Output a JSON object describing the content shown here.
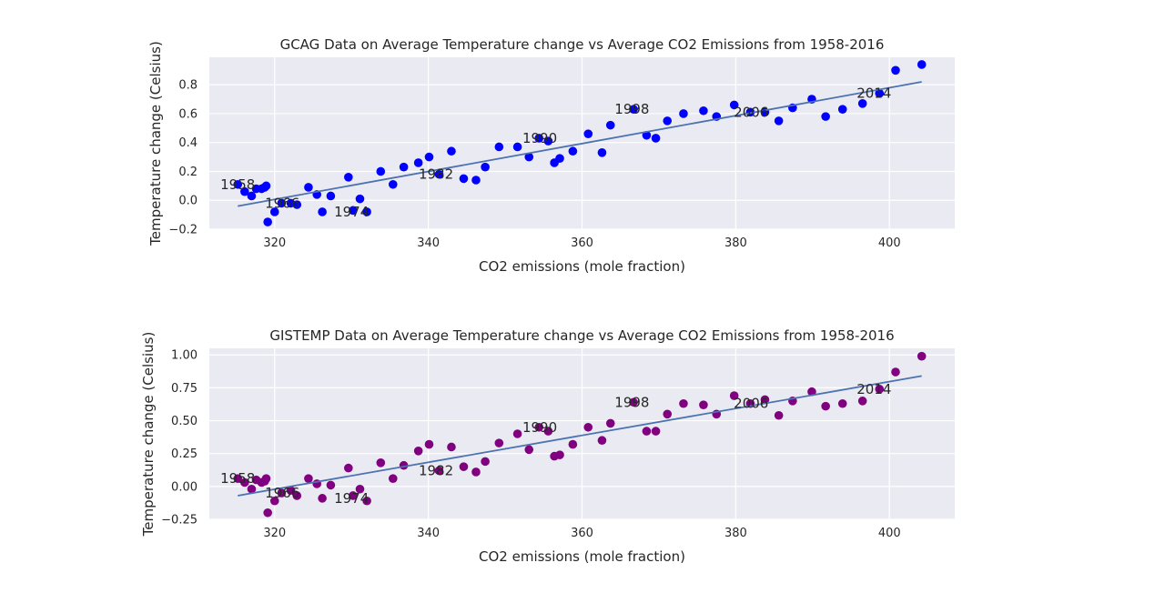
{
  "chart_data": [
    {
      "type": "scatter",
      "title": "GCAG Data on Average Temperature change vs Average CO2 Emissions from 1958-2016",
      "xlabel": "CO2 emissions (mole fraction)",
      "ylabel": "Temperature change (Celsius)",
      "xlim": [
        311.5,
        408.5
      ],
      "ylim": [
        -0.2,
        0.99
      ],
      "xticks": [
        320,
        340,
        360,
        380,
        400
      ],
      "yticks": [
        -0.2,
        0.0,
        0.2,
        0.4,
        0.6,
        0.8
      ],
      "ytick_labels": [
        "−0.2",
        "0.0",
        "0.2",
        "0.4",
        "0.6",
        "0.8"
      ],
      "grid": true,
      "marker_color": "#0000ff",
      "fit_color": "#4c72b0",
      "background": "#eaeaf2",
      "x": [
        315.2,
        316.1,
        317.0,
        317.6,
        318.3,
        318.7,
        318.9,
        319.1,
        320.0,
        320.9,
        322.1,
        322.9,
        324.4,
        325.5,
        326.2,
        327.3,
        329.6,
        330.2,
        331.1,
        332.0,
        333.8,
        335.4,
        336.8,
        338.7,
        340.1,
        341.4,
        343.0,
        344.6,
        346.2,
        347.4,
        349.2,
        351.6,
        353.1,
        354.4,
        355.6,
        356.4,
        357.1,
        358.8,
        360.8,
        362.6,
        363.7,
        366.7,
        368.4,
        369.6,
        371.1,
        373.2,
        375.8,
        377.5,
        379.8,
        381.9,
        383.8,
        385.6,
        387.4,
        389.9,
        391.7,
        393.9,
        396.5,
        398.7,
        400.8,
        404.2
      ],
      "y": [
        0.11,
        0.06,
        0.03,
        0.08,
        0.08,
        0.09,
        0.1,
        -0.15,
        -0.08,
        -0.02,
        -0.02,
        -0.03,
        0.09,
        0.04,
        -0.08,
        0.03,
        0.16,
        -0.07,
        0.01,
        -0.08,
        0.2,
        0.11,
        0.23,
        0.26,
        0.3,
        0.18,
        0.34,
        0.15,
        0.14,
        0.23,
        0.37,
        0.37,
        0.3,
        0.43,
        0.41,
        0.26,
        0.29,
        0.34,
        0.46,
        0.33,
        0.52,
        0.63,
        0.45,
        0.43,
        0.55,
        0.6,
        0.62,
        0.58,
        0.66,
        0.61,
        0.61,
        0.55,
        0.64,
        0.7,
        0.58,
        0.63,
        0.67,
        0.74,
        0.9,
        0.94
      ],
      "fit": {
        "x": [
          315.2,
          404.2
        ],
        "y": [
          -0.04,
          0.82
        ]
      },
      "annotations": [
        {
          "text": "1958",
          "x": 315.2,
          "y": 0.11
        },
        {
          "text": "1966",
          "x": 321.0,
          "y": -0.02
        },
        {
          "text": "1974",
          "x": 330.0,
          "y": -0.08
        },
        {
          "text": "1982",
          "x": 341.0,
          "y": 0.18
        },
        {
          "text": "1990",
          "x": 354.5,
          "y": 0.43
        },
        {
          "text": "1998",
          "x": 366.5,
          "y": 0.63
        },
        {
          "text": "2006",
          "x": 382.0,
          "y": 0.61
        },
        {
          "text": "2014",
          "x": 398.0,
          "y": 0.74
        }
      ]
    },
    {
      "type": "scatter",
      "title": "GISTEMP Data on Average Temperature change vs Average CO2 Emissions from 1958-2016",
      "xlabel": "CO2 emissions (mole fraction)",
      "ylabel": "Temperature change (Celsius)",
      "xlim": [
        311.5,
        408.5
      ],
      "ylim": [
        -0.25,
        1.05
      ],
      "xticks": [
        320,
        340,
        360,
        380,
        400
      ],
      "yticks": [
        -0.25,
        0.0,
        0.25,
        0.5,
        0.75,
        1.0
      ],
      "ytick_labels": [
        "−0.25",
        "0.00",
        "0.25",
        "0.50",
        "0.75",
        "1.00"
      ],
      "grid": true,
      "marker_color": "#800080",
      "fit_color": "#4c72b0",
      "background": "#eaeaf2",
      "x": [
        315.2,
        316.1,
        317.0,
        317.6,
        318.3,
        318.7,
        318.9,
        319.1,
        320.0,
        320.9,
        322.1,
        322.9,
        324.4,
        325.5,
        326.2,
        327.3,
        329.6,
        330.2,
        331.1,
        332.0,
        333.8,
        335.4,
        336.8,
        338.7,
        340.1,
        341.4,
        343.0,
        344.6,
        346.2,
        347.4,
        349.2,
        351.6,
        353.1,
        354.4,
        355.6,
        356.4,
        357.1,
        358.8,
        360.8,
        362.6,
        363.7,
        366.7,
        368.4,
        369.6,
        371.1,
        373.2,
        375.8,
        377.5,
        379.8,
        381.9,
        383.8,
        385.6,
        387.4,
        389.9,
        391.7,
        393.9,
        396.5,
        398.7,
        400.8,
        404.2
      ],
      "y": [
        0.06,
        0.03,
        -0.02,
        0.05,
        0.03,
        0.04,
        0.06,
        -0.2,
        -0.11,
        -0.05,
        -0.03,
        -0.07,
        0.06,
        0.02,
        -0.09,
        0.01,
        0.14,
        -0.07,
        -0.02,
        -0.11,
        0.18,
        0.06,
        0.16,
        0.27,
        0.32,
        0.12,
        0.3,
        0.15,
        0.11,
        0.19,
        0.33,
        0.4,
        0.28,
        0.45,
        0.42,
        0.23,
        0.24,
        0.32,
        0.45,
        0.35,
        0.48,
        0.64,
        0.42,
        0.42,
        0.55,
        0.63,
        0.62,
        0.55,
        0.69,
        0.63,
        0.66,
        0.54,
        0.65,
        0.72,
        0.61,
        0.63,
        0.65,
        0.74,
        0.87,
        0.99
      ],
      "fit": {
        "x": [
          315.2,
          404.2
        ],
        "y": [
          -0.07,
          0.84
        ]
      },
      "annotations": [
        {
          "text": "1958",
          "x": 315.2,
          "y": 0.06
        },
        {
          "text": "1966",
          "x": 321.0,
          "y": -0.05
        },
        {
          "text": "1974",
          "x": 330.0,
          "y": -0.09
        },
        {
          "text": "1982",
          "x": 341.0,
          "y": 0.12
        },
        {
          "text": "1990",
          "x": 354.5,
          "y": 0.45
        },
        {
          "text": "1998",
          "x": 366.5,
          "y": 0.64
        },
        {
          "text": "2006",
          "x": 382.0,
          "y": 0.63
        },
        {
          "text": "2014",
          "x": 398.0,
          "y": 0.74
        }
      ]
    }
  ]
}
